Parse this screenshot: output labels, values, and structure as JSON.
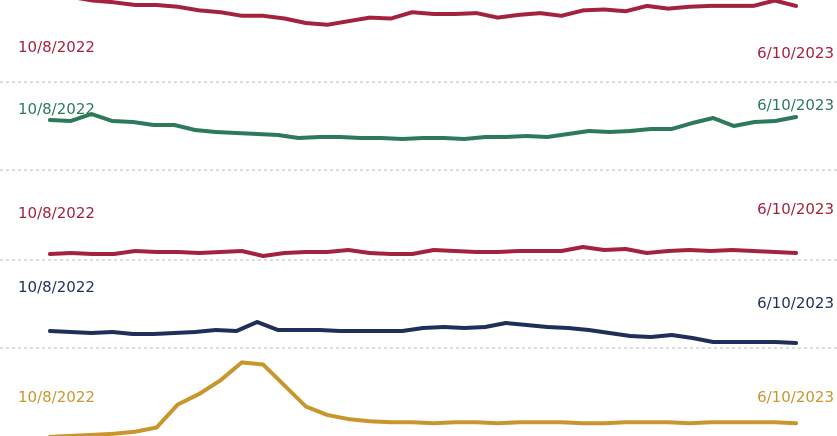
{
  "chart_data": [
    {
      "type": "line",
      "x_start": "10/8/2022",
      "x_end": "6/10/2023",
      "start_label": "10/8/2022",
      "end_label": "6/10/2023",
      "color": "#a3233f",
      "ylim": [
        0,
        100
      ],
      "values": [
        98,
        99,
        95,
        93,
        90,
        90,
        88,
        84,
        82,
        78,
        78,
        75,
        70,
        68,
        72,
        76,
        75,
        82,
        80,
        80,
        81,
        76,
        79,
        81,
        78,
        84,
        85,
        83,
        89,
        86,
        88,
        89,
        89,
        89,
        95,
        89
      ]
    },
    {
      "type": "line",
      "x_start": "10/8/2022",
      "x_end": "6/10/2023",
      "start_label": "10/8/2022",
      "end_label": "6/10/2023",
      "color": "#2c7a5a",
      "ylim": [
        0,
        100
      ],
      "values": [
        64,
        63,
        70,
        63,
        62,
        59,
        59,
        54,
        52,
        51,
        50,
        49,
        46,
        47,
        47,
        46,
        46,
        45,
        46,
        46,
        45,
        47,
        47,
        48,
        47,
        50,
        53,
        52,
        53,
        55,
        55,
        61,
        66,
        58,
        62,
        63,
        67
      ]
    },
    {
      "type": "line",
      "x_start": "10/8/2022",
      "x_end": "6/10/2023",
      "start_label": "10/8/2022",
      "end_label": "6/10/2023",
      "color": "#a3233f",
      "ylim": [
        0,
        100
      ],
      "values": [
        37,
        38,
        37,
        37,
        40,
        39,
        39,
        38,
        39,
        40,
        35,
        38,
        39,
        39,
        41,
        38,
        37,
        37,
        41,
        40,
        39,
        39,
        40,
        40,
        40,
        44,
        41,
        42,
        38,
        40,
        41,
        40,
        41,
        40,
        39,
        38
      ]
    },
    {
      "type": "line",
      "x_start": "10/8/2022",
      "x_end": "6/10/2023",
      "start_label": "10/8/2022",
      "end_label": "6/10/2023",
      "color": "#1f2f5a",
      "ylim": [
        0,
        100
      ],
      "values": [
        54,
        53,
        52,
        53,
        51,
        51,
        52,
        53,
        55,
        54,
        63,
        55,
        55,
        55,
        54,
        54,
        54,
        54,
        57,
        58,
        57,
        58,
        62,
        60,
        58,
        57,
        55,
        52,
        49,
        48,
        50,
        47,
        43,
        43,
        43,
        43,
        42
      ]
    },
    {
      "type": "line",
      "x_start": "10/8/2022",
      "x_end": "6/10/2023",
      "start_label": "10/8/2022",
      "end_label": "6/10/2023",
      "color": "#c9962e",
      "ylim": [
        0,
        100
      ],
      "values": [
        1,
        2,
        3,
        4,
        6,
        10,
        32,
        42,
        55,
        72,
        70,
        50,
        30,
        22,
        18,
        16,
        15,
        15,
        14,
        15,
        15,
        14,
        15,
        15,
        15,
        14,
        14,
        15,
        15,
        15,
        14,
        15,
        15,
        15,
        15,
        14
      ]
    }
  ]
}
